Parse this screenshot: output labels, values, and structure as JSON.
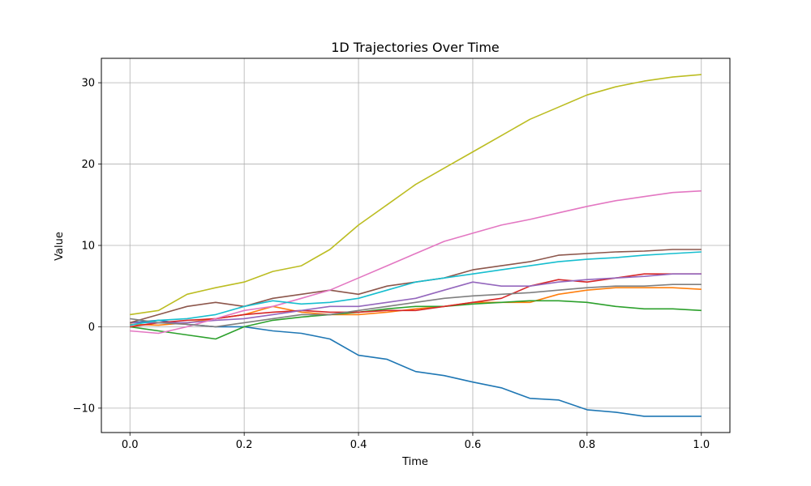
{
  "chart_data": {
    "type": "line",
    "title": "1D Trajectories Over Time",
    "xlabel": "Time",
    "ylabel": "Value",
    "xlim": [
      -0.05,
      1.05
    ],
    "ylim": [
      -13,
      33
    ],
    "xticks": [
      0.0,
      0.2,
      0.4,
      0.6,
      0.8,
      1.0
    ],
    "xtick_labels": [
      "0.0",
      "0.2",
      "0.4",
      "0.6",
      "0.8",
      "1.0"
    ],
    "yticks": [
      -10,
      0,
      10,
      20,
      30
    ],
    "ytick_labels": [
      "−10",
      "0",
      "10",
      "20",
      "30"
    ],
    "grid": true,
    "x": [
      0.0,
      0.05,
      0.1,
      0.15,
      0.2,
      0.25,
      0.3,
      0.35,
      0.4,
      0.45,
      0.5,
      0.55,
      0.6,
      0.65,
      0.7,
      0.75,
      0.8,
      0.85,
      0.9,
      0.95,
      1.0
    ],
    "series": [
      {
        "color": "#1f77b4",
        "values": [
          0.5,
          0.8,
          0.3,
          0.0,
          0.0,
          -0.5,
          -0.8,
          -1.5,
          -3.5,
          -4.0,
          -5.5,
          -6.0,
          -6.8,
          -7.5,
          -8.8,
          -9.0,
          -10.2,
          -10.5,
          -11.0,
          -11.0,
          -11.0
        ]
      },
      {
        "color": "#ff7f0e",
        "values": [
          0.3,
          0.2,
          0.5,
          1.0,
          1.5,
          2.5,
          1.8,
          1.5,
          1.5,
          1.8,
          2.2,
          2.5,
          3.0,
          3.0,
          3.0,
          4.0,
          4.5,
          4.8,
          4.8,
          4.8,
          4.6
        ]
      },
      {
        "color": "#2ca02c",
        "values": [
          0.0,
          -0.5,
          -1.0,
          -1.5,
          0.0,
          0.8,
          1.2,
          1.5,
          1.8,
          2.2,
          2.5,
          2.5,
          2.8,
          3.0,
          3.2,
          3.2,
          3.0,
          2.5,
          2.2,
          2.2,
          2.0
        ]
      },
      {
        "color": "#d62728",
        "values": [
          0.0,
          0.5,
          0.8,
          1.0,
          1.5,
          1.8,
          2.0,
          1.8,
          1.8,
          2.0,
          2.0,
          2.5,
          3.0,
          3.5,
          5.0,
          5.8,
          5.5,
          6.0,
          6.5,
          6.5,
          6.5
        ]
      },
      {
        "color": "#9467bd",
        "values": [
          0.5,
          0.5,
          0.5,
          0.8,
          1.0,
          1.5,
          2.0,
          2.5,
          2.5,
          3.0,
          3.5,
          4.5,
          5.5,
          5.0,
          5.0,
          5.5,
          5.8,
          6.0,
          6.2,
          6.5,
          6.5
        ]
      },
      {
        "color": "#8c564b",
        "values": [
          0.5,
          1.5,
          2.5,
          3.0,
          2.5,
          3.5,
          4.0,
          4.5,
          4.0,
          5.0,
          5.5,
          6.0,
          7.0,
          7.5,
          8.0,
          8.8,
          9.0,
          9.2,
          9.3,
          9.5,
          9.5
        ]
      },
      {
        "color": "#e377c2",
        "values": [
          -0.5,
          -0.8,
          0.0,
          1.0,
          2.0,
          2.5,
          3.5,
          4.5,
          6.0,
          7.5,
          9.0,
          10.5,
          11.5,
          12.5,
          13.2,
          14.0,
          14.8,
          15.5,
          16.0,
          16.5,
          16.7
        ]
      },
      {
        "color": "#7f7f7f",
        "values": [
          1.0,
          0.5,
          0.3,
          0.0,
          0.5,
          1.0,
          1.5,
          1.5,
          2.0,
          2.5,
          3.0,
          3.5,
          3.8,
          4.0,
          4.2,
          4.5,
          4.8,
          5.0,
          5.0,
          5.2,
          5.2
        ]
      },
      {
        "color": "#bcbd22",
        "values": [
          1.5,
          2.0,
          4.0,
          4.8,
          5.5,
          6.8,
          7.5,
          9.5,
          12.5,
          15.0,
          17.5,
          19.5,
          21.5,
          23.5,
          25.5,
          27.0,
          28.5,
          29.5,
          30.2,
          30.7,
          31.0
        ]
      },
      {
        "color": "#17becf",
        "values": [
          0.2,
          0.8,
          1.0,
          1.5,
          2.5,
          3.2,
          2.8,
          3.0,
          3.5,
          4.5,
          5.5,
          6.0,
          6.5,
          7.0,
          7.5,
          8.0,
          8.3,
          8.5,
          8.8,
          9.0,
          9.2
        ]
      }
    ]
  }
}
